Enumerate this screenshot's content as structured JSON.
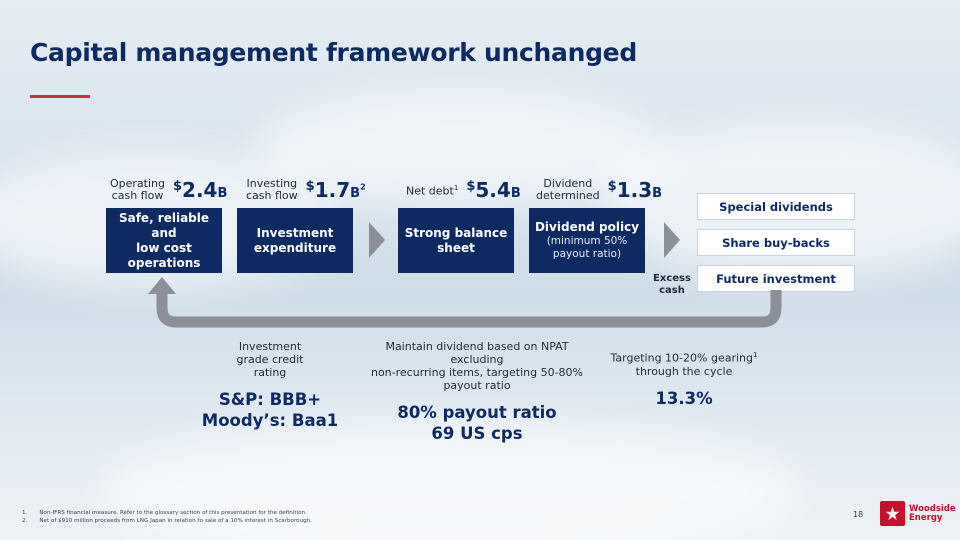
{
  "title": "Capital management framework unchanged",
  "stats": [
    {
      "label_line1": "Operating",
      "label_line2": "cash flow",
      "currency": "$",
      "amount": "2.4",
      "unit": "B",
      "note": ""
    },
    {
      "label_line1": "Investing",
      "label_line2": "cash flow",
      "currency": "$",
      "amount": "1.7",
      "unit": "B",
      "note": "2"
    },
    {
      "label_line1": "Net debt",
      "label_note": "1",
      "currency": "$",
      "amount": "5.4",
      "unit": "B"
    },
    {
      "label_line1": "Dividend",
      "label_line2": "determined",
      "currency": "$",
      "amount": "1.3",
      "unit": "B"
    }
  ],
  "boxes": [
    {
      "title_line1": "Safe, reliable and",
      "title_line2": "low cost",
      "title_line3": "operations"
    },
    {
      "title_line1": "Investment",
      "title_line2": "expenditure"
    },
    {
      "title_line1": "Strong balance",
      "title_line2": "sheet"
    },
    {
      "title_line1": "Dividend policy",
      "sub_line1": "(minimum 50%",
      "sub_line2": "payout ratio)"
    }
  ],
  "options": [
    "Special dividends",
    "Share buy-backs",
    "Future investment"
  ],
  "excess_label_line1": "Excess",
  "excess_label_line2": "cash",
  "columns": [
    {
      "desc_line1": "Investment",
      "desc_line2": "grade credit",
      "desc_line3": "rating",
      "big_line1": "S&P: BBB+",
      "big_line2": "Moody’s: Baa1"
    },
    {
      "desc_line1": "Maintain dividend based on NPAT excluding",
      "desc_line2": "non-recurring items, targeting 50-80%",
      "desc_line3": "payout ratio",
      "big_line1": "80% payout ratio",
      "big_line2": "69 US cps"
    },
    {
      "desc_line1": "Targeting 10-20% gearing",
      "desc_note": "1",
      "desc_line2": "through the cycle",
      "big_line1": "13.3%"
    }
  ],
  "footnotes": [
    {
      "num": "1.",
      "text": "Non-IFRS financial measure. Refer to the glossary section of this presentation for the definition."
    },
    {
      "num": "2.",
      "text": "Net of $910 million proceeds from LNG Japan in relation to sale of a 10% interest in Scarborough."
    }
  ],
  "page_number": "18",
  "logo": {
    "line1": "Woodside",
    "line2": "Energy"
  },
  "colors": {
    "navy": "#0e2a63",
    "accent_red": "#d7263d",
    "brand_red": "#c8102e",
    "arrow_grey": "#8a8f98"
  }
}
